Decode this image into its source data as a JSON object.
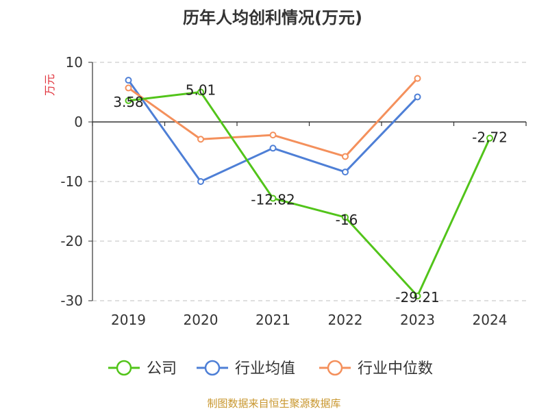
{
  "chart_data": {
    "type": "line",
    "title": "历年人均创利情况(万元)",
    "ylabel": "万元",
    "categories": [
      "2019",
      "2020",
      "2021",
      "2022",
      "2023",
      "2024"
    ],
    "ylim": [
      -30,
      10
    ],
    "yticks": [
      "10",
      "0",
      "-10",
      "-20",
      "-30"
    ],
    "grid": true,
    "legend_position": "bottom",
    "series": [
      {
        "name": "公司",
        "values": [
          3.58,
          5.01,
          -12.82,
          -16,
          -29.21,
          -2.72
        ],
        "color": "#52c41a",
        "labels": [
          "3.58",
          "5.01",
          "-12.82",
          "-16",
          "-29.21",
          "-2.72"
        ]
      },
      {
        "name": "行业均值",
        "values": [
          7.0,
          -10.0,
          -4.4,
          -8.4,
          4.2,
          null
        ],
        "color": "#4e7fd6"
      },
      {
        "name": "行业中位数",
        "values": [
          5.7,
          -2.9,
          -2.2,
          -5.8,
          7.3,
          null
        ],
        "color": "#f4905c"
      }
    ]
  },
  "footer": {
    "source": "制图数据来自恒生聚源数据库",
    "source_color": "#c8962d"
  },
  "colors": {
    "axis": "#333333",
    "grid": "#cccccc",
    "ylabel": "#e0303a"
  }
}
